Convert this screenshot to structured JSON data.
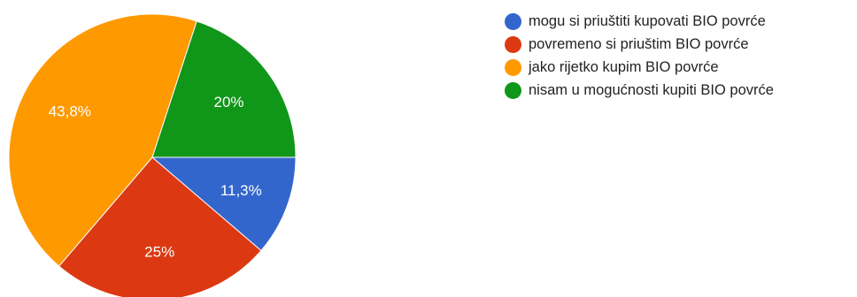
{
  "chart_data": {
    "type": "pie",
    "start_angle_deg": 90,
    "direction": "clockwise",
    "legend_position": "right",
    "slices": [
      {
        "label": "mogu si priuštiti kupovati BIO povrće",
        "value": 11.3,
        "value_label": "11,3%",
        "color": "#3366cc"
      },
      {
        "label": "povremeno si priuštim BIO povrće",
        "value": 25,
        "value_label": "25%",
        "color": "#dc3912"
      },
      {
        "label": "jako rijetko kupim BIO povrće",
        "value": 43.8,
        "value_label": "43,8%",
        "color": "#ff9900"
      },
      {
        "label": "nisam u mogućnosti kupiti BIO povrće",
        "value": 20,
        "value_label": "20%",
        "color": "#109618"
      }
    ]
  }
}
